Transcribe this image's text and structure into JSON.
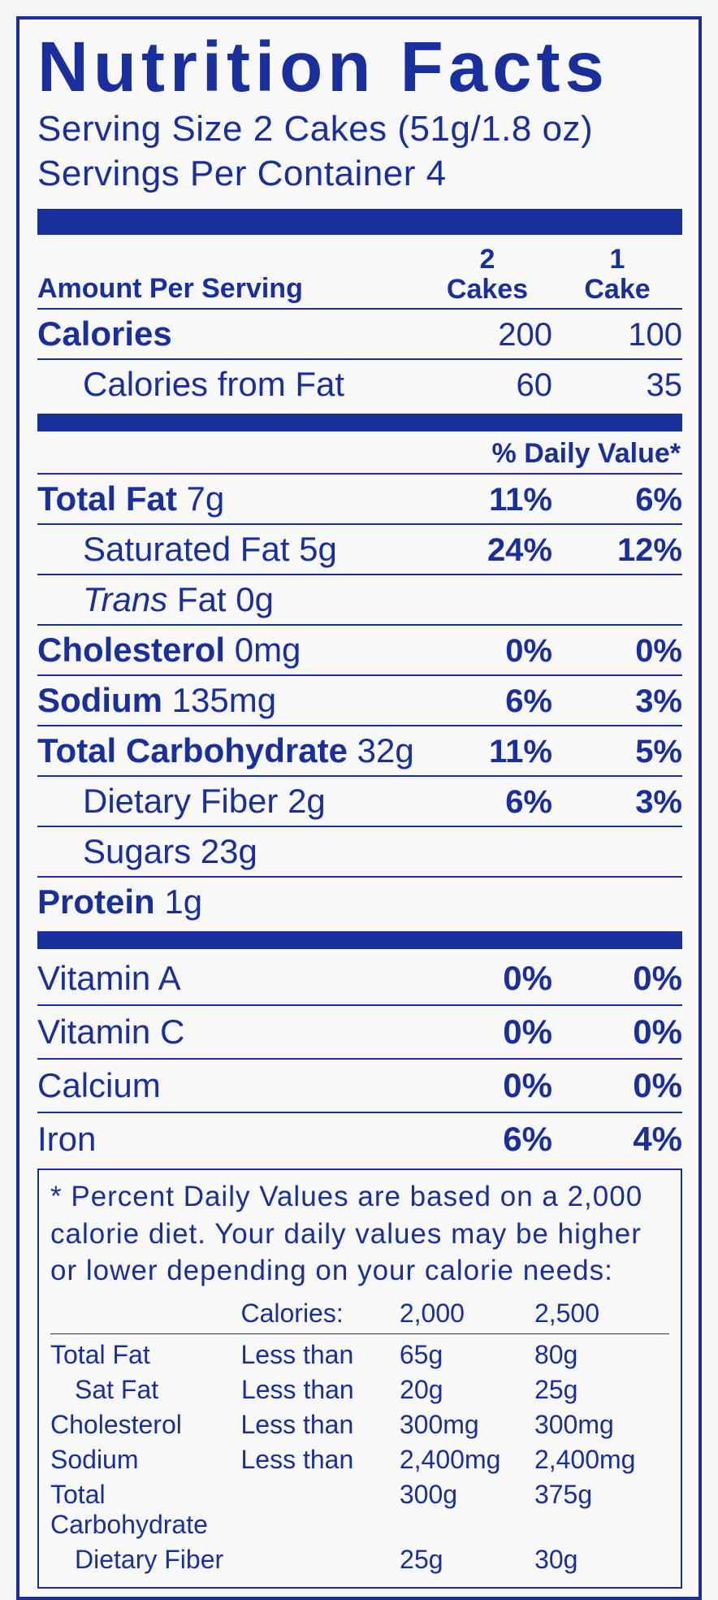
{
  "colors": {
    "ink": "#1a2f9e",
    "background": "#f8f8f8"
  },
  "title": "Nutrition Facts",
  "serving_size_label": "Serving Size",
  "serving_size_value": "2 Cakes (51g/1.8 oz)",
  "servings_per_container_label": "Servings Per Container",
  "servings_per_container_value": "4",
  "header": {
    "amount_per_serving": "Amount Per Serving",
    "col1_line1": "2",
    "col1_line2": "Cakes",
    "col2_line1": "1",
    "col2_line2": "Cake"
  },
  "calories": {
    "label": "Calories",
    "c1": "200",
    "c2": "100"
  },
  "calories_from_fat": {
    "label": "Calories from Fat",
    "c1": "60",
    "c2": "35"
  },
  "daily_value_header": "% Daily Value*",
  "nutrients": [
    {
      "bold": true,
      "indent": false,
      "label": "Total Fat",
      "amount": "7g",
      "c1": "11%",
      "c2": "6%",
      "pct_bold": true
    },
    {
      "bold": false,
      "indent": true,
      "label": "Saturated Fat",
      "amount": "5g",
      "c1": "24%",
      "c2": "12%",
      "pct_bold": true
    },
    {
      "bold": false,
      "indent": true,
      "italic_prefix": "Trans",
      "label_rest": " Fat",
      "amount": "0g",
      "c1": "",
      "c2": "",
      "pct_bold": false
    },
    {
      "bold": true,
      "indent": false,
      "label": "Cholesterol",
      "amount": "0mg",
      "c1": "0%",
      "c2": "0%",
      "pct_bold": true
    },
    {
      "bold": true,
      "indent": false,
      "label": "Sodium",
      "amount": "135mg",
      "c1": "6%",
      "c2": "3%",
      "pct_bold": true
    },
    {
      "bold": true,
      "indent": false,
      "label": "Total Carbohydrate",
      "amount": "32g",
      "c1": "11%",
      "c2": "5%",
      "pct_bold": true
    },
    {
      "bold": false,
      "indent": true,
      "label": "Dietary Fiber",
      "amount": "2g",
      "c1": "6%",
      "c2": "3%",
      "pct_bold": true
    },
    {
      "bold": false,
      "indent": true,
      "label": "Sugars",
      "amount": "23g",
      "c1": "",
      "c2": "",
      "pct_bold": false
    },
    {
      "bold": true,
      "indent": false,
      "label": "Protein",
      "amount": "1g",
      "c1": "",
      "c2": "",
      "pct_bold": false
    }
  ],
  "vitamins": [
    {
      "label": "Vitamin A",
      "c1": "0%",
      "c2": "0%"
    },
    {
      "label": "Vitamin C",
      "c1": "0%",
      "c2": "0%"
    },
    {
      "label": "Calcium",
      "c1": "0%",
      "c2": "0%"
    },
    {
      "label": "Iron",
      "c1": "6%",
      "c2": "4%"
    }
  ],
  "footnote": {
    "text": "* Percent Daily Values are based on a 2,000 calorie diet. Your daily values may be higher or lower depending on your calorie needs:",
    "head": {
      "c1": "",
      "c2": "Calories:",
      "c3": "2,000",
      "c4": "2,500"
    },
    "rows": [
      {
        "indent": false,
        "c1": "Total Fat",
        "c2": "Less than",
        "c3": "65g",
        "c4": "80g"
      },
      {
        "indent": true,
        "c1": "Sat Fat",
        "c2": "Less than",
        "c3": "20g",
        "c4": "25g"
      },
      {
        "indent": false,
        "c1": "Cholesterol",
        "c2": "Less than",
        "c3": "300mg",
        "c4": "300mg"
      },
      {
        "indent": false,
        "c1": "Sodium",
        "c2": "Less than",
        "c3": "2,400mg",
        "c4": "2,400mg"
      },
      {
        "indent": false,
        "c1": "Total Carbohydrate",
        "c2": "",
        "c3": "300g",
        "c4": "375g"
      },
      {
        "indent": true,
        "c1": "Dietary Fiber",
        "c2": "",
        "c3": "25g",
        "c4": "30g"
      }
    ]
  }
}
